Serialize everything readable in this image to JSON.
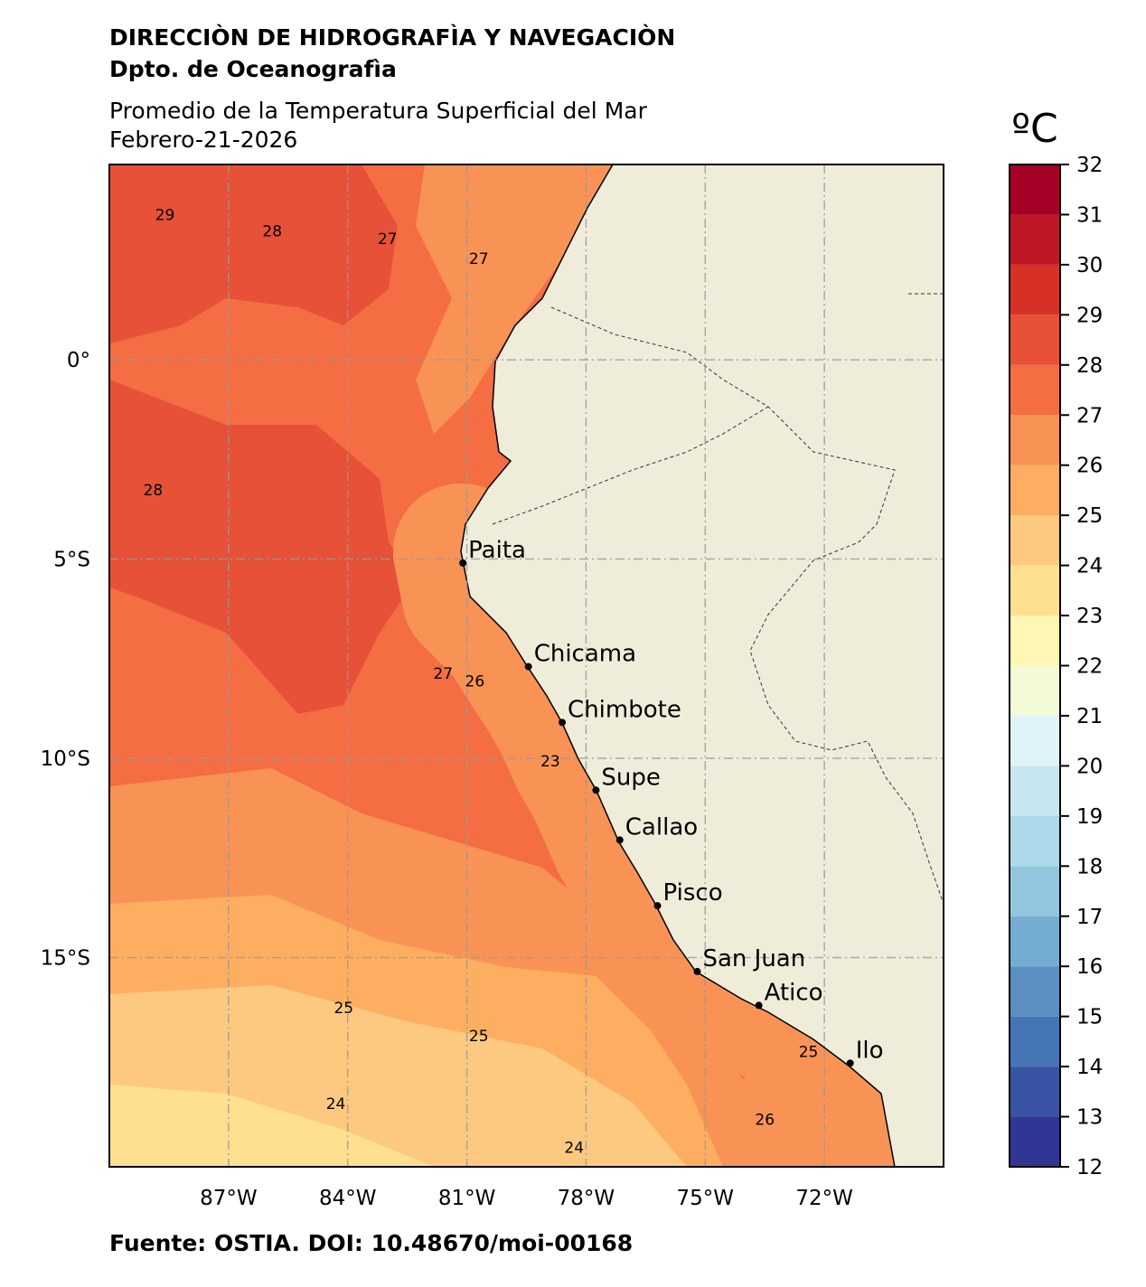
{
  "header": {
    "title": "DIRECCIÒN DE HIDROGRAFÌA Y NAVEGACIÒN",
    "subtitle": "Dpto. de Oceanografìa"
  },
  "map": {
    "title": "Promedio de la Temperatura Superficial del Mar",
    "date": "Febrero-21-2026",
    "lonlim": [
      -90,
      -69
    ],
    "latlim": [
      -20.25,
      4.9
    ],
    "lonticks": [
      {
        "value": -87,
        "label": "87°W"
      },
      {
        "value": -84,
        "label": "84°W"
      },
      {
        "value": -81,
        "label": "81°W"
      },
      {
        "value": -78,
        "label": "78°W"
      },
      {
        "value": -75,
        "label": "75°W"
      },
      {
        "value": -72,
        "label": "72°W"
      }
    ],
    "latticks": [
      {
        "value": 0,
        "label": "0°"
      },
      {
        "value": -5,
        "label": "5°S"
      },
      {
        "value": -10,
        "label": "10°S"
      },
      {
        "value": -15,
        "label": "15°S"
      }
    ],
    "cities": [
      {
        "name": "Paita",
        "lon": -81.1,
        "lat": -5.1
      },
      {
        "name": "Chicama",
        "lon": -79.45,
        "lat": -7.7
      },
      {
        "name": "Chimbote",
        "lon": -78.6,
        "lat": -9.1
      },
      {
        "name": "Supe",
        "lon": -77.75,
        "lat": -10.8
      },
      {
        "name": "Callao",
        "lon": -77.15,
        "lat": -12.05
      },
      {
        "name": "Pisco",
        "lon": -76.2,
        "lat": -13.7
      },
      {
        "name": "San Juan",
        "lon": -75.2,
        "lat": -15.35
      },
      {
        "name": "Atico",
        "lon": -73.65,
        "lat": -16.2
      },
      {
        "name": "Ilo",
        "lon": -71.35,
        "lat": -17.65
      }
    ],
    "contour_labels": [
      {
        "value": 29,
        "lon": -88.6,
        "lat": 3.5
      },
      {
        "value": 28,
        "lon": -85.9,
        "lat": 3.1
      },
      {
        "value": 27,
        "lon": -80.7,
        "lat": 2.4
      },
      {
        "value": 27,
        "lon": -83.0,
        "lat": 2.9
      },
      {
        "value": 28,
        "lon": -88.9,
        "lat": -3.4
      },
      {
        "value": 27,
        "lon": -81.6,
        "lat": -8.0
      },
      {
        "value": 26,
        "lon": -80.8,
        "lat": -8.2
      },
      {
        "value": 23,
        "lon": -78.9,
        "lat": -10.2
      },
      {
        "value": 25,
        "lon": -84.1,
        "lat": -16.4
      },
      {
        "value": 25,
        "lon": -80.7,
        "lat": -17.1
      },
      {
        "value": 24,
        "lon": -84.3,
        "lat": -18.8
      },
      {
        "value": 24,
        "lon": -78.3,
        "lat": -19.9
      },
      {
        "value": 26,
        "lon": -73.5,
        "lat": -19.2
      },
      {
        "value": 25,
        "lon": -72.4,
        "lat": -17.5
      }
    ]
  },
  "colorbar": {
    "unit": "ºC",
    "ticks": [
      12,
      13,
      14,
      15,
      16,
      17,
      18,
      19,
      20,
      21,
      22,
      23,
      24,
      25,
      26,
      27,
      28,
      29,
      30,
      31,
      32
    ],
    "colors": [
      "#313695",
      "#3a54a4",
      "#4575b4",
      "#5b8fc2",
      "#74add1",
      "#92c5de",
      "#abd9e9",
      "#c7e6f0",
      "#e0f3f8",
      "#f2fad6",
      "#fef7b3",
      "#fee090",
      "#fdc980",
      "#fdae61",
      "#f99355",
      "#f46d43",
      "#e65138",
      "#d73027",
      "#be1827",
      "#a50026"
    ]
  },
  "footer": {
    "source": "Fuente: OSTIA. DOI: 10.48670/moi-00168"
  }
}
